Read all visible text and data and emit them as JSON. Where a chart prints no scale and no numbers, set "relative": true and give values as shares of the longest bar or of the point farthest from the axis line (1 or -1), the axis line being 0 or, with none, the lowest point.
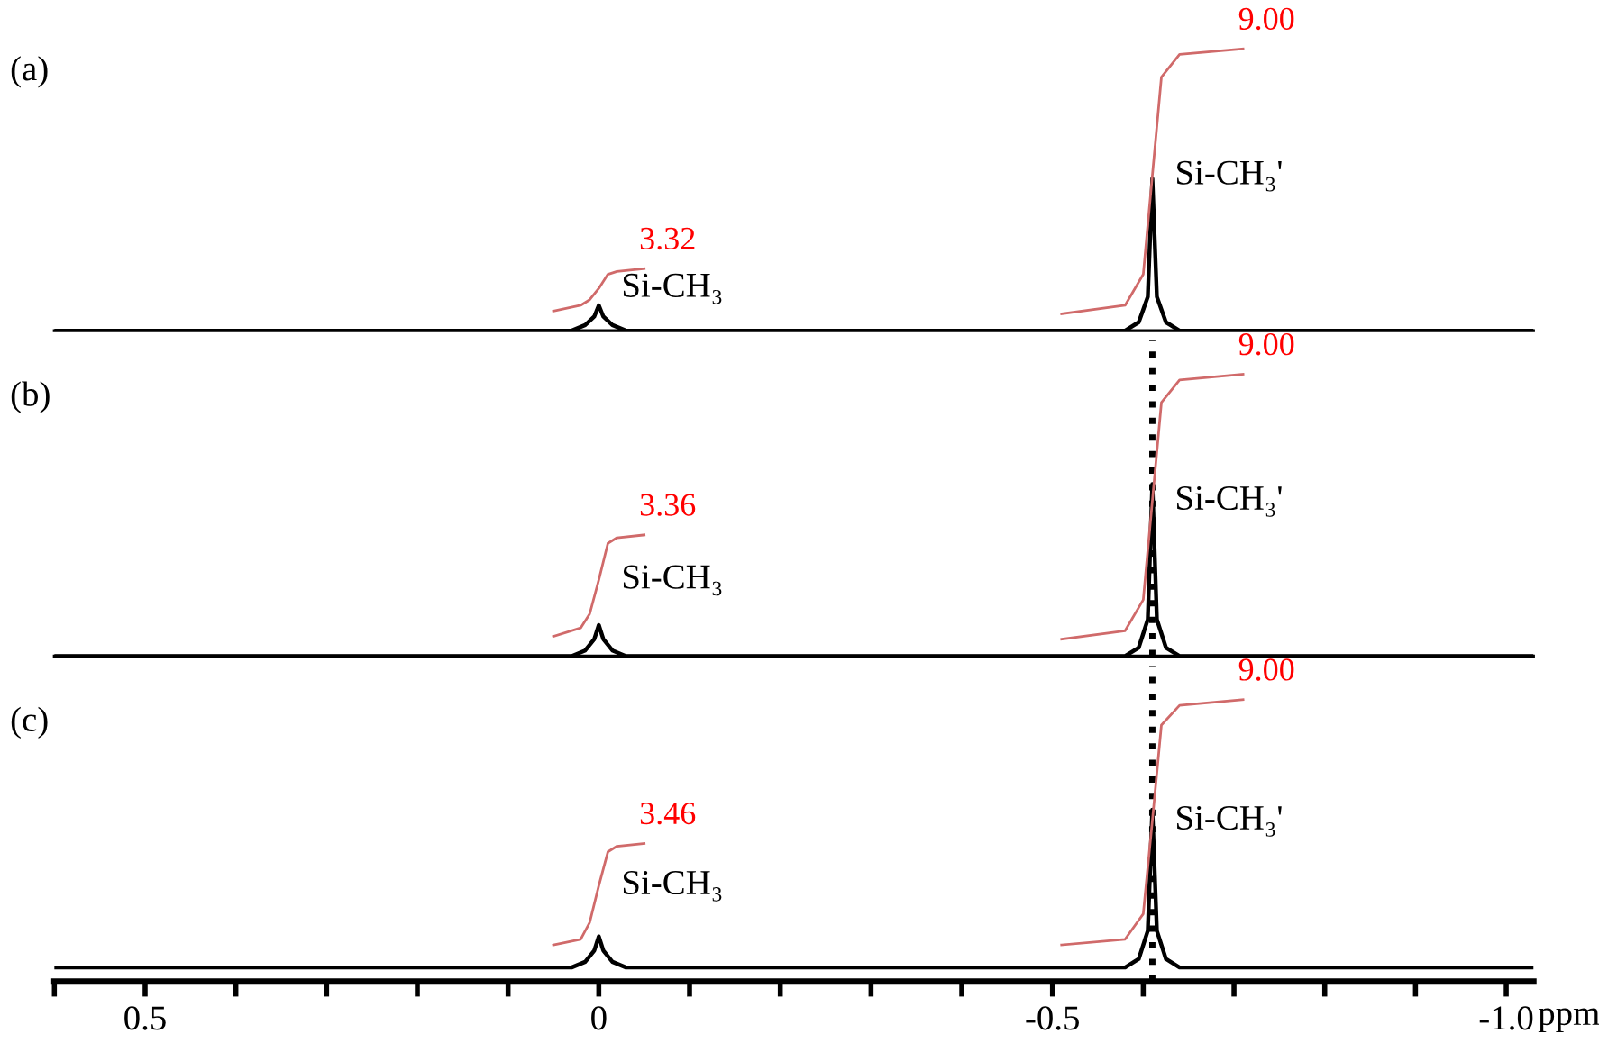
{
  "chart_data": [
    {
      "type": "line",
      "title": "(a)",
      "relative": true,
      "xlim": [
        0.6,
        -1.03
      ],
      "tick_labels": false,
      "legend": false,
      "grid": false,
      "marker": "none",
      "series": [
        {
          "color": "#000000",
          "x": [
            0.6,
            0.03,
            0.015,
            0.005,
            0,
            -0.005,
            -0.015,
            -0.03,
            -0.58,
            -0.595,
            -0.605,
            -0.61,
            -0.615,
            -0.625,
            -0.64,
            -1.03
          ],
          "values": [
            0,
            0,
            0.02,
            0.05,
            0.09,
            0.05,
            0.02,
            0,
            0,
            0.03,
            0.12,
            0.54,
            0.12,
            0.03,
            0,
            0
          ]
        },
        {
          "color": "#d06a6a",
          "x": [
            0.05,
            0.02,
            0.01,
            0,
            -0.01,
            -0.02,
            -0.05
          ],
          "values": [
            0.07,
            0.09,
            0.11,
            0.15,
            0.2,
            0.21,
            0.22
          ]
        },
        {
          "color": "#d06a6a",
          "x": [
            -0.51,
            -0.58,
            -0.6,
            -0.61,
            -0.62,
            -0.64,
            -0.71
          ],
          "values": [
            0.06,
            0.09,
            0.2,
            0.55,
            0.9,
            0.98,
            1
          ]
        }
      ],
      "annotations": [
        "3.32",
        "Si-CH₃",
        "9.00",
        "Si-CH₃'"
      ]
    },
    {
      "type": "line",
      "title": "(b)",
      "relative": true,
      "xlim": [
        0.6,
        -1.03
      ],
      "tick_labels": false,
      "legend": false,
      "grid": false,
      "marker": "none",
      "ref_lines": [
        {
          "axis": "x",
          "value": -0.61,
          "line_style": "dotted",
          "color": "#000000"
        }
      ],
      "series": [
        {
          "color": "#000000",
          "x": [
            0.6,
            0.03,
            0.015,
            0.005,
            0,
            -0.005,
            -0.015,
            -0.03,
            -0.58,
            -0.595,
            -0.605,
            -0.61,
            -0.615,
            -0.625,
            -0.64,
            -1.03
          ],
          "values": [
            0,
            0,
            0.02,
            0.06,
            0.11,
            0.06,
            0.02,
            0,
            0,
            0.03,
            0.13,
            0.61,
            0.13,
            0.03,
            0,
            0
          ]
        },
        {
          "color": "#d06a6a",
          "x": [
            0.05,
            0.02,
            0.01,
            0,
            -0.01,
            -0.02,
            -0.05
          ],
          "values": [
            0.07,
            0.1,
            0.15,
            0.27,
            0.4,
            0.42,
            0.43
          ]
        },
        {
          "color": "#d06a6a",
          "x": [
            -0.51,
            -0.58,
            -0.6,
            -0.61,
            -0.62,
            -0.64,
            -0.71
          ],
          "values": [
            0.06,
            0.09,
            0.2,
            0.55,
            0.9,
            0.98,
            1
          ]
        }
      ],
      "annotations": [
        "3.36",
        "Si-CH₃",
        "9.00",
        "Si-CH₃'"
      ]
    },
    {
      "type": "line",
      "title": "(c)",
      "relative": true,
      "xlim": [
        0.6,
        -1.03
      ],
      "tick_labels": "x",
      "xlabel": "ppm",
      "legend": false,
      "grid": false,
      "marker": "none",
      "xticks": [
        {
          "value": 0.6,
          "label": null
        },
        0.5,
        {
          "value": 0.4,
          "label": null
        },
        {
          "value": 0.3,
          "label": null
        },
        {
          "value": 0.2,
          "label": null
        },
        {
          "value": 0.1,
          "label": null
        },
        0,
        {
          "value": -0.1,
          "label": null
        },
        {
          "value": -0.2,
          "label": null
        },
        {
          "value": -0.3,
          "label": null
        },
        {
          "value": -0.4,
          "label": null
        },
        -0.5,
        {
          "value": -0.6,
          "label": null
        },
        {
          "value": -0.7,
          "label": null
        },
        {
          "value": -0.8,
          "label": null
        },
        {
          "value": -0.9,
          "label": null
        },
        {
          "value": -1,
          "label": "-1.0"
        }
      ],
      "ref_lines": [
        {
          "axis": "x",
          "value": -0.61,
          "line_style": "dotted",
          "color": "#000000"
        }
      ],
      "series": [
        {
          "color": "#000000",
          "x": [
            0.6,
            0.03,
            0.015,
            0.005,
            0,
            -0.005,
            -0.015,
            -0.03,
            -0.58,
            -0.595,
            -0.605,
            -0.61,
            -0.615,
            -0.625,
            -0.64,
            -1.03
          ],
          "values": [
            0.05,
            0.05,
            0.07,
            0.11,
            0.16,
            0.11,
            0.07,
            0.05,
            0.05,
            0.08,
            0.18,
            0.61,
            0.18,
            0.08,
            0.05,
            0.05
          ]
        },
        {
          "color": "#d06a6a",
          "x": [
            0.05,
            0.02,
            0.01,
            0,
            -0.01,
            -0.02,
            -0.05
          ],
          "values": [
            0.13,
            0.15,
            0.21,
            0.34,
            0.46,
            0.48,
            0.49
          ]
        },
        {
          "color": "#d06a6a",
          "x": [
            -0.51,
            -0.58,
            -0.6,
            -0.61,
            -0.62,
            -0.64,
            -0.71
          ],
          "values": [
            0.13,
            0.15,
            0.24,
            0.57,
            0.91,
            0.98,
            1
          ]
        }
      ],
      "annotations": [
        "3.46",
        "Si-CH₃",
        "9.00",
        "Si-CH₃'"
      ]
    }
  ]
}
